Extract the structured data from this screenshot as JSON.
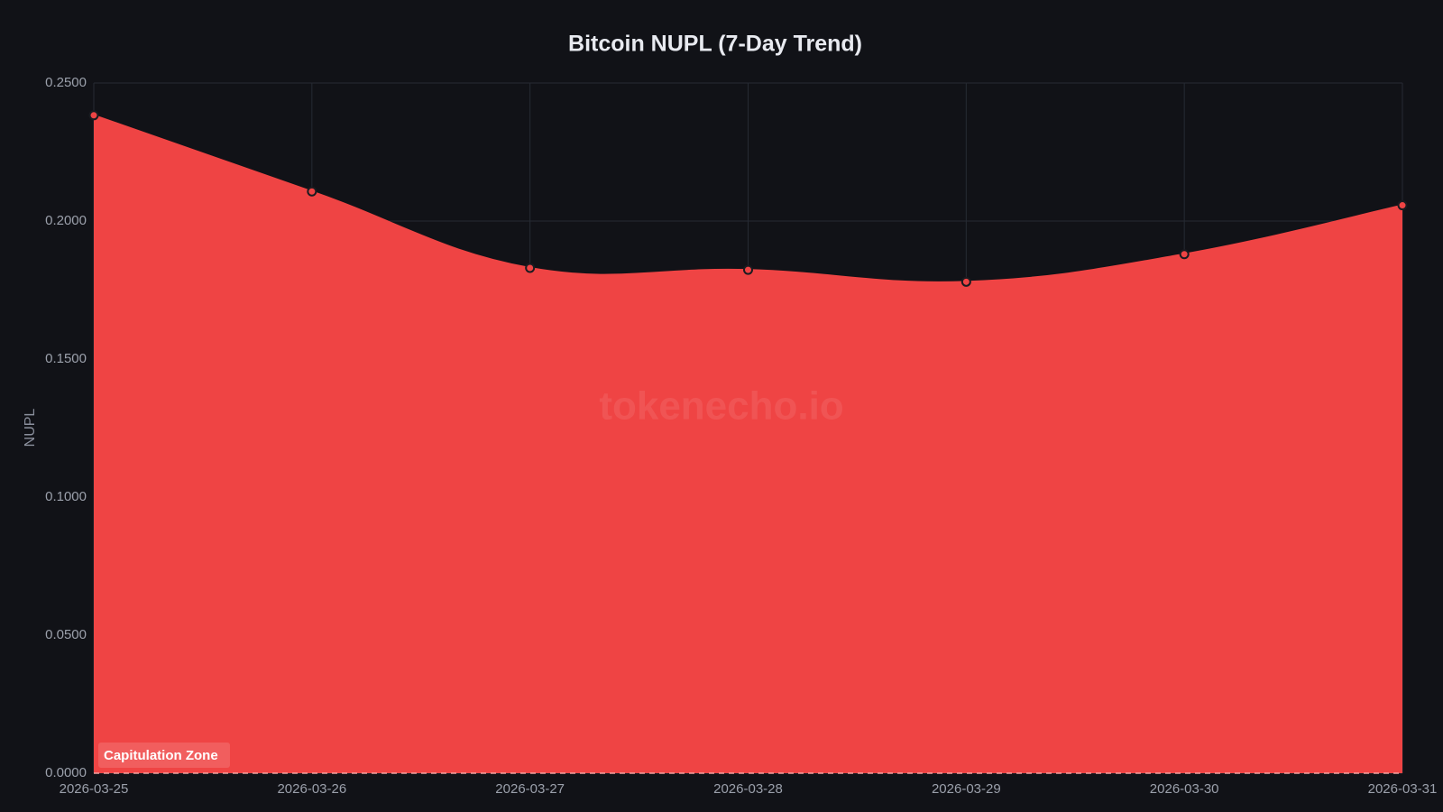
{
  "chart_data": {
    "type": "area",
    "title": "Bitcoin NUPL (7-Day Trend)",
    "y_label": "NUPL",
    "watermark": "tokenecho.io",
    "annotation": "Capitulation Zone",
    "x": [
      "2026-03-25",
      "2026-03-26",
      "2026-03-27",
      "2026-03-28",
      "2026-03-29",
      "2026-03-30",
      "2026-03-31"
    ],
    "series": [
      {
        "color": "#ef4444",
        "values": [
          0.2383,
          0.2107,
          0.183,
          0.1823,
          0.178,
          0.188,
          0.2057
        ]
      }
    ],
    "ylim": [
      0,
      0.25
    ],
    "yticks": [
      {
        "value": 0,
        "label": "0.0000"
      },
      {
        "value": 0.05,
        "label": "0.0500"
      },
      {
        "value": 0.1,
        "label": "0.1000"
      },
      {
        "value": 0.15,
        "label": "0.1500"
      },
      {
        "value": 0.2,
        "label": "0.2000"
      },
      {
        "value": 0.25,
        "label": "0.2500"
      }
    ],
    "grid": true
  }
}
